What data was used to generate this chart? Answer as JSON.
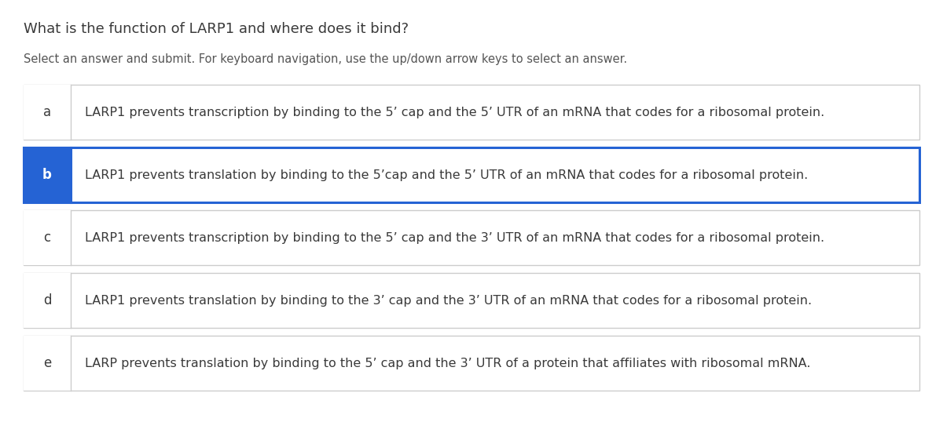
{
  "title": "What is the function of LARP1 and where does it bind?",
  "subtitle": "Select an answer and submit. For keyboard navigation, use the up/down arrow keys to select an answer.",
  "options": [
    {
      "label": "a",
      "text": "LARP1 prevents transcription by binding to the 5’ cap and the 5’ UTR of an mRNA that codes for a ribosomal protein.",
      "selected": false
    },
    {
      "label": "b",
      "text": "LARP1 prevents translation by binding to the 5’cap and the 5’ UTR of an mRNA that codes for a ribosomal protein.",
      "selected": true
    },
    {
      "label": "c",
      "text": "LARP1 prevents transcription by binding to the 5’ cap and the 3’ UTR of an mRNA that codes for a ribosomal protein.",
      "selected": false
    },
    {
      "label": "d",
      "text": "LARP1 prevents translation by binding to the 3’ cap and the 3’ UTR of an mRNA that codes for a ribosomal protein.",
      "selected": false
    },
    {
      "label": "e",
      "text": "LARP prevents translation by binding to the 5’ cap and the 3’ UTR of a protein that affiliates with ribosomal mRNA.",
      "selected": false
    }
  ],
  "bg_color": "#ffffff",
  "title_color": "#3a3a3a",
  "subtitle_color": "#555555",
  "label_text_color_default": "#3a3a3a",
  "label_text_color_selected": "#ffffff",
  "label_bg_color_selected": "#2563d4",
  "option_text_color": "#3a3a3a",
  "border_color_default": "#cccccc",
  "border_color_selected": "#2563d4",
  "option_bg_default": "#ffffff",
  "title_fontsize": 13.0,
  "subtitle_fontsize": 10.5,
  "option_fontsize": 11.5,
  "label_fontsize": 12.0
}
